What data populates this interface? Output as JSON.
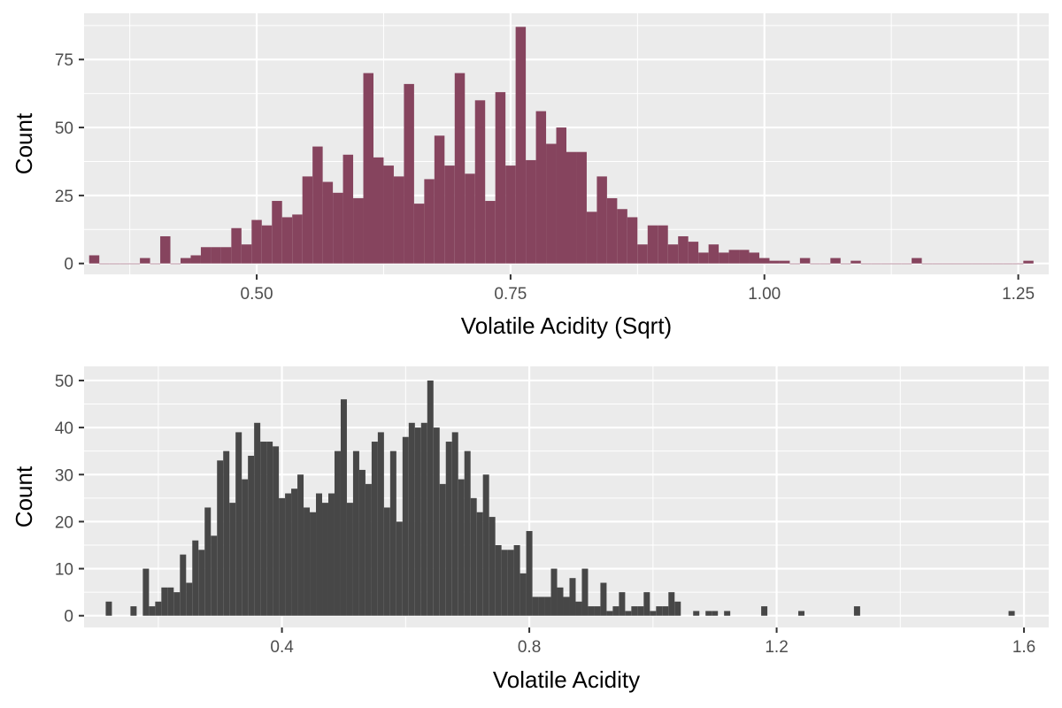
{
  "chart_data": [
    {
      "type": "bar",
      "xlabel": "Volatile Acidity (Sqrt)",
      "ylabel": "Count",
      "xlim": [
        0.33,
        1.28
      ],
      "ylim": [
        -4,
        92
      ],
      "xticks": [
        0.5,
        0.75,
        1.0,
        1.25
      ],
      "xtick_labels": [
        "0.50",
        "0.75",
        "1.00",
        "1.25"
      ],
      "yticks": [
        0,
        25,
        50,
        75
      ],
      "ytick_labels": [
        "0",
        "25",
        "50",
        "75"
      ],
      "binwidth": 0.01,
      "fill_color": "#86445E",
      "x": [
        0.34,
        0.35,
        0.36,
        0.37,
        0.38,
        0.39,
        0.4,
        0.41,
        0.42,
        0.43,
        0.44,
        0.45,
        0.46,
        0.47,
        0.48,
        0.49,
        0.5,
        0.51,
        0.52,
        0.53,
        0.54,
        0.55,
        0.56,
        0.57,
        0.58,
        0.59,
        0.6,
        0.61,
        0.62,
        0.63,
        0.64,
        0.65,
        0.66,
        0.67,
        0.68,
        0.69,
        0.7,
        0.71,
        0.72,
        0.73,
        0.74,
        0.75,
        0.76,
        0.77,
        0.78,
        0.79,
        0.8,
        0.81,
        0.82,
        0.83,
        0.84,
        0.85,
        0.86,
        0.87,
        0.88,
        0.89,
        0.9,
        0.91,
        0.92,
        0.93,
        0.94,
        0.95,
        0.96,
        0.97,
        0.98,
        0.99,
        1.0,
        1.01,
        1.02,
        1.03,
        1.04,
        1.05,
        1.06,
        1.07,
        1.08,
        1.09,
        1.1,
        1.11,
        1.12,
        1.13,
        1.14,
        1.15,
        1.16,
        1.17,
        1.18,
        1.19,
        1.2,
        1.21,
        1.22,
        1.23,
        1.24,
        1.25,
        1.26
      ],
      "values": [
        3,
        0,
        0,
        0,
        0,
        2,
        0,
        10,
        0,
        2,
        3,
        6,
        6,
        6,
        13,
        7,
        16,
        14,
        23,
        17,
        18,
        32,
        43,
        30,
        26,
        40,
        24,
        70,
        39,
        36,
        32,
        66,
        22,
        31,
        47,
        36,
        70,
        33,
        60,
        23,
        63,
        36,
        87,
        38,
        56,
        44,
        50,
        41,
        41,
        19,
        32,
        24,
        20,
        17,
        7,
        14,
        14,
        7,
        10,
        8,
        4,
        7,
        4,
        5,
        5,
        4,
        2,
        1,
        1,
        0,
        2,
        0,
        0,
        2,
        0,
        1,
        0,
        0,
        0,
        0,
        0,
        2,
        0,
        0,
        0,
        0,
        0,
        0,
        0,
        0,
        0,
        0,
        1
      ],
      "grid": true
    },
    {
      "type": "bar",
      "xlabel": "Volatile Acidity",
      "ylabel": "Count",
      "xlim": [
        0.08,
        1.64
      ],
      "ylim": [
        -2.5,
        53
      ],
      "xticks": [
        0.4,
        0.8,
        1.2,
        1.6
      ],
      "xtick_labels": [
        "0.4",
        "0.8",
        "1.2",
        "1.6"
      ],
      "yticks": [
        0,
        10,
        20,
        30,
        40,
        50
      ],
      "ytick_labels": [
        "0",
        "10",
        "20",
        "30",
        "40",
        "50"
      ],
      "binwidth": 0.01,
      "fill_color": "#474747",
      "x": [
        0.12,
        0.16,
        0.18,
        0.19,
        0.2,
        0.21,
        0.22,
        0.23,
        0.24,
        0.25,
        0.26,
        0.27,
        0.28,
        0.29,
        0.3,
        0.31,
        0.32,
        0.33,
        0.34,
        0.35,
        0.36,
        0.37,
        0.38,
        0.39,
        0.4,
        0.41,
        0.42,
        0.43,
        0.44,
        0.45,
        0.46,
        0.47,
        0.48,
        0.49,
        0.5,
        0.51,
        0.52,
        0.53,
        0.54,
        0.55,
        0.56,
        0.57,
        0.58,
        0.59,
        0.6,
        0.61,
        0.62,
        0.63,
        0.64,
        0.65,
        0.66,
        0.67,
        0.68,
        0.69,
        0.7,
        0.71,
        0.72,
        0.73,
        0.74,
        0.75,
        0.76,
        0.77,
        0.78,
        0.79,
        0.8,
        0.81,
        0.82,
        0.83,
        0.84,
        0.85,
        0.86,
        0.87,
        0.88,
        0.89,
        0.9,
        0.91,
        0.92,
        0.93,
        0.94,
        0.95,
        0.96,
        0.97,
        0.98,
        0.99,
        1.0,
        1.01,
        1.02,
        1.03,
        1.04,
        1.07,
        1.09,
        1.1,
        1.12,
        1.18,
        1.24,
        1.33,
        1.58
      ],
      "values": [
        3,
        2,
        10,
        2,
        3,
        6,
        6,
        5,
        13,
        7,
        16,
        14,
        23,
        17,
        33,
        35,
        24,
        39,
        29,
        34,
        41,
        37,
        37,
        36,
        25,
        26,
        27,
        30,
        23,
        22,
        26,
        24,
        26,
        35,
        46,
        24,
        35,
        31,
        28,
        37,
        39,
        23,
        35,
        20,
        38,
        41,
        40,
        41,
        50,
        40,
        28,
        37,
        39,
        29,
        35,
        25,
        22,
        30,
        21,
        15,
        14,
        14,
        15,
        9,
        18,
        4,
        4,
        4,
        10,
        6,
        4,
        8,
        3,
        10,
        2,
        2,
        7,
        1,
        2,
        5,
        1,
        2,
        2,
        5,
        1,
        2,
        2,
        5,
        3,
        1,
        1,
        1,
        1,
        2,
        1,
        2,
        1
      ],
      "grid": true
    }
  ]
}
